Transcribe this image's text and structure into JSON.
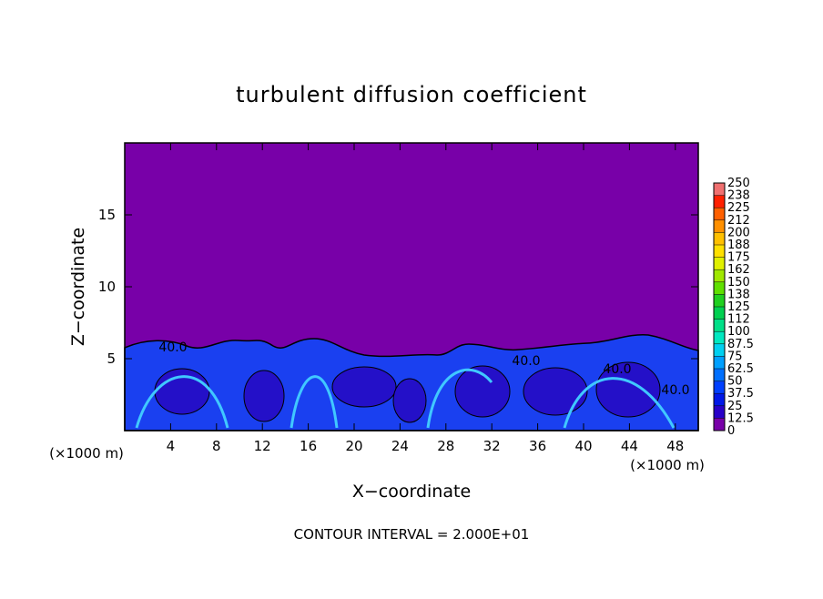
{
  "chart_data": {
    "type": "contour",
    "title": "turbulent diffusion coefficient",
    "xlabel": "X−coordinate",
    "ylabel": "Z−coordinate",
    "x_unit": "(×1000 m)",
    "x_unit_right": "(×1000 m)",
    "footer": "CONTOUR INTERVAL = 2.000E+01",
    "xlim": [
      0,
      50
    ],
    "xticks": [
      4,
      8,
      12,
      16,
      20,
      24,
      28,
      32,
      36,
      40,
      44,
      48
    ],
    "ylim": [
      0,
      20
    ],
    "yticks": [
      5,
      10,
      15
    ],
    "contour_labels": [
      {
        "value": 40,
        "label": "40.0"
      },
      {
        "value": 40,
        "label": "40.0"
      },
      {
        "value": 40,
        "label": "40.0"
      },
      {
        "value": 40,
        "label": "40.0"
      }
    ],
    "clim": [
      0,
      250
    ],
    "cticks": [
      0,
      12.5,
      25,
      37.5,
      50,
      62.5,
      75,
      87.5,
      100,
      {
        "value": 112.5,
        "label": "112"
      },
      125,
      {
        "value": 137.5,
        "label": "138"
      },
      150,
      {
        "value": 162.5,
        "label": "162"
      },
      175,
      {
        "value": 187.5,
        "label": "188"
      },
      200,
      {
        "value": 212.5,
        "label": "212"
      },
      225,
      {
        "value": 237.5,
        "label": "238"
      },
      250
    ],
    "colors": [
      "#7800a8",
      "#2800c8",
      "#0018e8",
      "#0040ff",
      "#0070ff",
      "#00a0ff",
      "#00d0f0",
      "#00e8c0",
      "#00e088",
      "#00d050",
      "#20d020",
      "#60e000",
      "#a0e800",
      "#e0f000",
      "#ffe000",
      "#ffc000",
      "#ff9000",
      "#ff6000",
      "#ff2000",
      "#f07070"
    ]
  }
}
